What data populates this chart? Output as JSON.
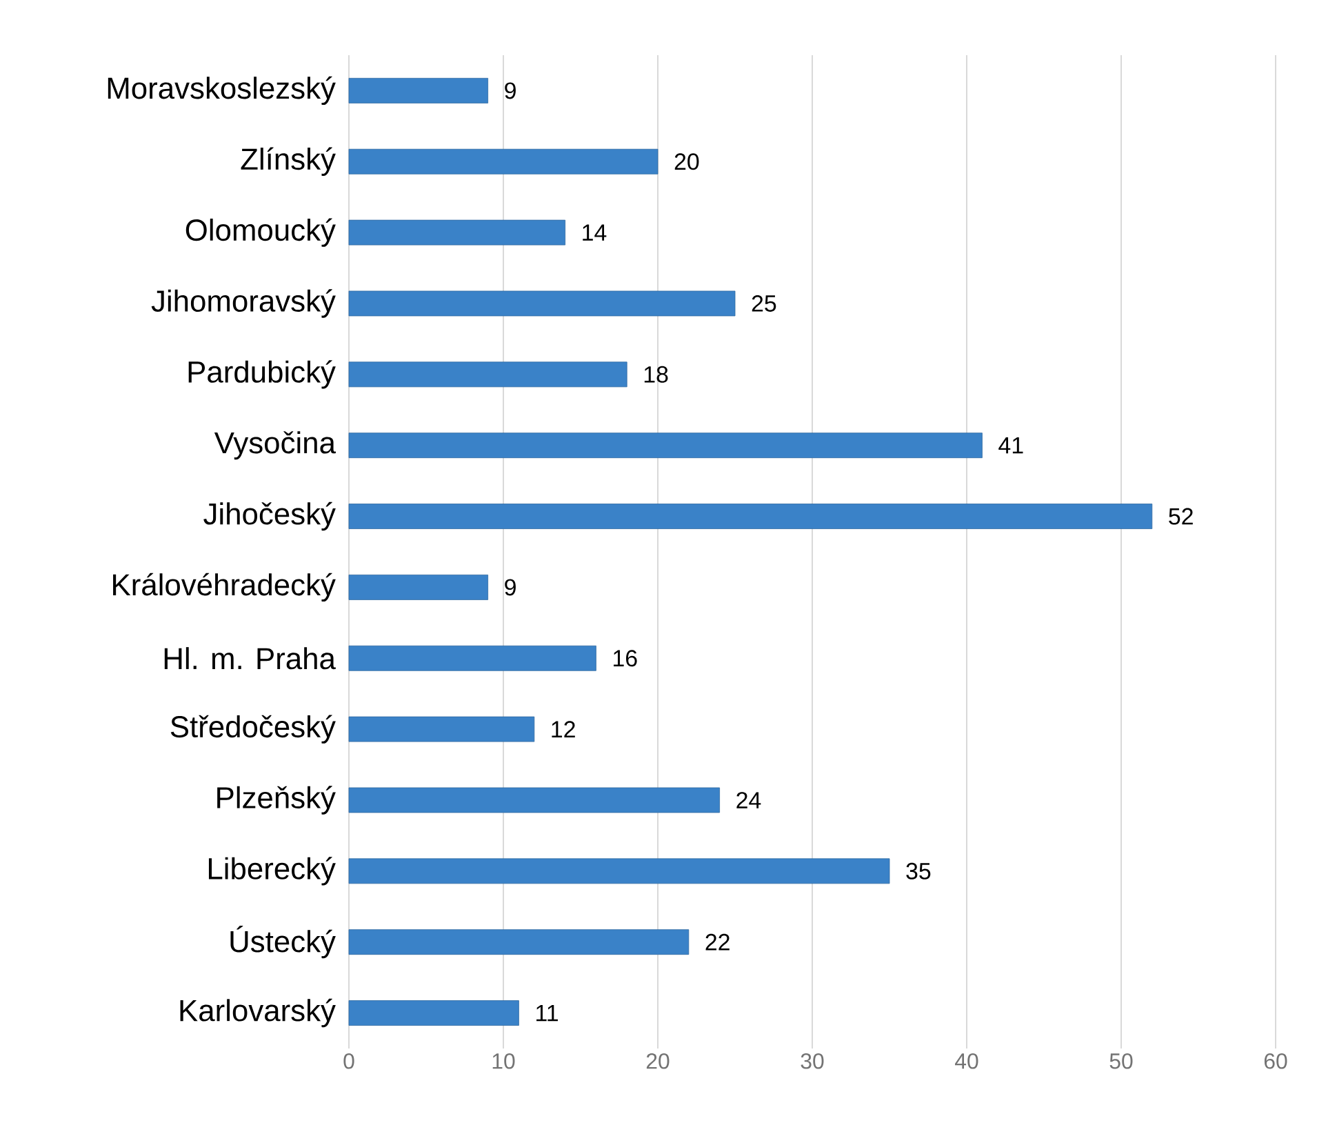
{
  "chart_data": {
    "type": "bar",
    "orientation": "horizontal",
    "categories": [
      "Moravskoslezský",
      "Zlínský",
      "Olomoucký",
      "Jihomoravský",
      "Pardubický",
      "Vysočina",
      "Jihočeský",
      "Královéhradecký",
      "Hl. m. Praha",
      "Středočeský",
      "Plzeňský",
      "Liberecký",
      "Ústecký",
      "Karlovarský"
    ],
    "values": [
      9,
      20,
      14,
      25,
      18,
      41,
      52,
      9,
      16,
      12,
      24,
      35,
      22,
      11
    ],
    "color": "#3a82c8",
    "xlim": [
      0,
      60
    ],
    "xticks": [
      0,
      10,
      20,
      30,
      40,
      50,
      60
    ],
    "grid": "x",
    "data_labels": true
  }
}
